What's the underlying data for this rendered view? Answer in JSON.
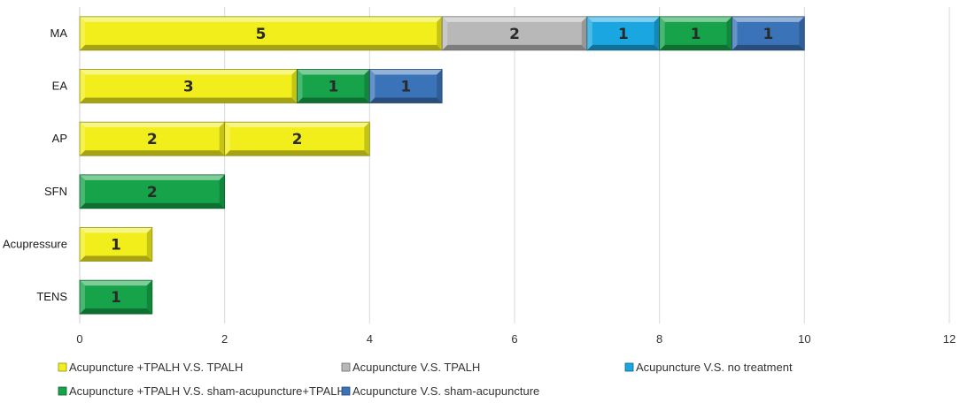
{
  "chart_data": {
    "type": "bar",
    "orientation": "horizontal",
    "stacked": true,
    "categories": [
      "MA",
      "EA",
      "AP",
      "SFN",
      "Acupressure",
      "TENS"
    ],
    "segments": [
      [
        {
          "series": 0,
          "value": 5
        },
        {
          "series": 1,
          "value": 2
        },
        {
          "series": 2,
          "value": 1
        },
        {
          "series": 3,
          "value": 1
        },
        {
          "series": 4,
          "value": 1
        }
      ],
      [
        {
          "series": 0,
          "value": 3
        },
        {
          "series": 3,
          "value": 1
        },
        {
          "series": 4,
          "value": 1
        }
      ],
      [
        {
          "series": 0,
          "value": 2
        },
        {
          "series": 0,
          "value": 2
        }
      ],
      [
        {
          "series": 3,
          "value": 2
        }
      ],
      [
        {
          "series": 0,
          "value": 1
        }
      ],
      [
        {
          "series": 3,
          "value": 1
        }
      ]
    ],
    "series": [
      {
        "name": "Acupuncture +TPALH V.S. TPALH",
        "color": "#f2ee1c"
      },
      {
        "name": "Acupuncture V.S. TPALH",
        "color": "#b8b8b8"
      },
      {
        "name": "Acupuncture V.S. no treatment",
        "color": "#1aa6e0"
      },
      {
        "name": "Acupuncture +TPALH V.S. sham-acupuncture+TPALH",
        "color": "#16a34a"
      },
      {
        "name": "Acupuncture V.S. sham-acupuncture",
        "color": "#3b73b8"
      }
    ],
    "xlim": [
      0,
      12
    ],
    "xticks": [
      0,
      2,
      4,
      6,
      8,
      10,
      12
    ],
    "grid": true,
    "legend_position": "bottom",
    "title": "",
    "xlabel": "",
    "ylabel": ""
  }
}
